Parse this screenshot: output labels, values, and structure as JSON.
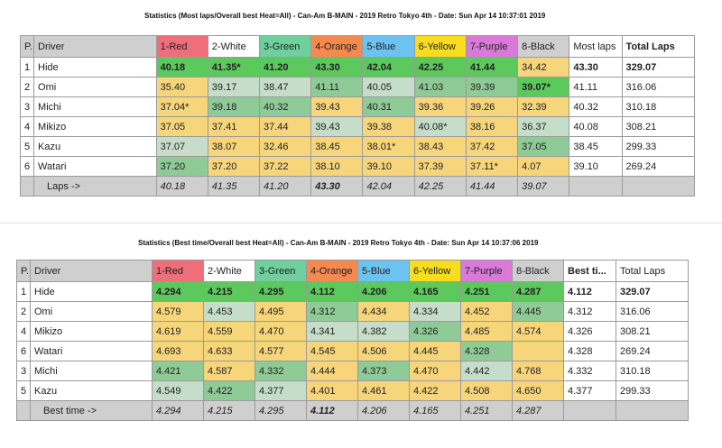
{
  "table1": {
    "title": "Statistics (Most laps/Overall best Heat=All) - Can-Am B-MAIN - 2019 Retro Tokyo 4th - Date: Sun Apr 14 10:37:01 2019",
    "headers": [
      "P...",
      "Driver",
      "1-Red",
      "2-White",
      "3-Green",
      "4-Orange",
      "5-Blue",
      "6-Yellow",
      "7-Purple",
      "8-Black",
      "Most laps",
      "Total Laps"
    ],
    "rows": [
      {
        "pos": "1",
        "driver": "Hide",
        "cells": [
          [
            "40.18",
            "G"
          ],
          [
            "41.35*",
            "G"
          ],
          [
            "41.20",
            "G"
          ],
          [
            "43.30",
            "G"
          ],
          [
            "42.04",
            "G"
          ],
          [
            "42.25",
            "G"
          ],
          [
            "41.44",
            "G"
          ],
          [
            "34.42",
            "y"
          ]
        ],
        "best": "43.30",
        "total": "329.07",
        "bold": true
      },
      {
        "pos": "2",
        "driver": "Omi",
        "cells": [
          [
            "35.40",
            "y"
          ],
          [
            "39.17",
            "lg"
          ],
          [
            "38.47",
            "lg"
          ],
          [
            "41.11",
            "mg"
          ],
          [
            "40.05",
            "lg"
          ],
          [
            "41.03",
            "mg"
          ],
          [
            "39.39",
            "mg"
          ],
          [
            "39.07*",
            "G"
          ]
        ],
        "best": "41.11",
        "total": "316.06"
      },
      {
        "pos": "3",
        "driver": "Michi",
        "cells": [
          [
            "37.04*",
            "y"
          ],
          [
            "39.18",
            "mg"
          ],
          [
            "40.32",
            "mg"
          ],
          [
            "39.43",
            "y"
          ],
          [
            "40.31",
            "mg"
          ],
          [
            "39.36",
            "y"
          ],
          [
            "39.26",
            "y"
          ],
          [
            "32.39",
            "y"
          ]
        ],
        "best": "40.32",
        "total": "310.18"
      },
      {
        "pos": "4",
        "driver": "Mikizo",
        "cells": [
          [
            "37.05",
            "y"
          ],
          [
            "37.41",
            "y"
          ],
          [
            "37.44",
            "y"
          ],
          [
            "39.43",
            "lg"
          ],
          [
            "39.38",
            "y"
          ],
          [
            "40.08*",
            "lg"
          ],
          [
            "38.16",
            "y"
          ],
          [
            "36.37",
            "lg"
          ]
        ],
        "best": "40.08",
        "total": "308.21"
      },
      {
        "pos": "5",
        "driver": "Kazu",
        "cells": [
          [
            "37.07",
            "lg"
          ],
          [
            "38.07",
            "y"
          ],
          [
            "32.46",
            "y"
          ],
          [
            "38.45",
            "y"
          ],
          [
            "38.01*",
            "y"
          ],
          [
            "38.43",
            "y"
          ],
          [
            "37.42",
            "y"
          ],
          [
            "37.05",
            "mg"
          ]
        ],
        "best": "38.45",
        "total": "299.33"
      },
      {
        "pos": "6",
        "driver": "Watari",
        "cells": [
          [
            "37.20",
            "mg"
          ],
          [
            "37.20",
            "y"
          ],
          [
            "37.22",
            "y"
          ],
          [
            "38.10",
            "y"
          ],
          [
            "39.10",
            "y"
          ],
          [
            "37.39",
            "y"
          ],
          [
            "37.11*",
            "y"
          ],
          [
            "4.07",
            "y"
          ]
        ],
        "best": "39.10",
        "total": "269.24"
      }
    ],
    "footer": {
      "label": "Laps ->",
      "values": [
        "40.18",
        "41.35",
        "41.20",
        "43.30",
        "42.04",
        "42.25",
        "41.44",
        "39.07"
      ],
      "bold_index": 3
    }
  },
  "table2": {
    "title": "Statistics (Best time/Overall best Heat=All) - Can-Am B-MAIN - 2019 Retro Tokyo 4th - Date: Sun Apr 14 10:37:06 2019",
    "headers": [
      "P...",
      "Driver",
      "1-Red",
      "2-White",
      "3-Green",
      "4-Orange",
      "5-Blue",
      "6-Yellow",
      "7-Purple",
      "8-Black",
      "Best ti...",
      "Total Laps"
    ],
    "rows": [
      {
        "pos": "1",
        "driver": "Hide",
        "cells": [
          [
            "4.294",
            "G"
          ],
          [
            "4.215",
            "G"
          ],
          [
            "4.295",
            "G"
          ],
          [
            "4.112",
            "G"
          ],
          [
            "4.206",
            "G"
          ],
          [
            "4.165",
            "G"
          ],
          [
            "4.251",
            "G"
          ],
          [
            "4.287",
            "G"
          ]
        ],
        "best": "4.112",
        "total": "329.07",
        "bold": true
      },
      {
        "pos": "2",
        "driver": "Omi",
        "cells": [
          [
            "4.579",
            "y"
          ],
          [
            "4.453",
            "lg"
          ],
          [
            "4.495",
            "y"
          ],
          [
            "4.312",
            "mg"
          ],
          [
            "4.434",
            "y"
          ],
          [
            "4.334",
            "lg"
          ],
          [
            "4.452",
            "y"
          ],
          [
            "4.445",
            "mg"
          ]
        ],
        "best": "4.312",
        "total": "316.06"
      },
      {
        "pos": "4",
        "driver": "Mikizo",
        "cells": [
          [
            "4.619",
            "y"
          ],
          [
            "4.559",
            "y"
          ],
          [
            "4.470",
            "y"
          ],
          [
            "4.341",
            "lg"
          ],
          [
            "4.382",
            "lg"
          ],
          [
            "4.326",
            "mg"
          ],
          [
            "4.485",
            "y"
          ],
          [
            "4.574",
            "y"
          ]
        ],
        "best": "4.326",
        "total": "308.21"
      },
      {
        "pos": "6",
        "driver": "Watari",
        "cells": [
          [
            "4.693",
            "y"
          ],
          [
            "4.633",
            "y"
          ],
          [
            "4.577",
            "y"
          ],
          [
            "4.545",
            "y"
          ],
          [
            "4.506",
            "y"
          ],
          [
            "4.445",
            "y"
          ],
          [
            "4.328",
            "mg"
          ],
          [
            "",
            "y"
          ]
        ],
        "best": "4.328",
        "total": "269.24"
      },
      {
        "pos": "3",
        "driver": "Michi",
        "cells": [
          [
            "4.421",
            "mg"
          ],
          [
            "4.587",
            "y"
          ],
          [
            "4.332",
            "mg"
          ],
          [
            "4.444",
            "y"
          ],
          [
            "4.373",
            "mg"
          ],
          [
            "4.470",
            "y"
          ],
          [
            "4.442",
            "lg"
          ],
          [
            "4.768",
            "y"
          ]
        ],
        "best": "4.332",
        "total": "310.18"
      },
      {
        "pos": "5",
        "driver": "Kazu",
        "cells": [
          [
            "4.549",
            "lg"
          ],
          [
            "4.422",
            "mg"
          ],
          [
            "4.377",
            "lg"
          ],
          [
            "4.401",
            "y"
          ],
          [
            "4.461",
            "y"
          ],
          [
            "4.422",
            "y"
          ],
          [
            "4.508",
            "y"
          ],
          [
            "4.650",
            "y"
          ]
        ],
        "best": "4.377",
        "total": "299.33"
      }
    ],
    "footer": {
      "label": "Best time ->",
      "values": [
        "4.294",
        "4.215",
        "4.295",
        "4.112",
        "4.206",
        "4.165",
        "4.251",
        "4.287"
      ],
      "bold_index": 3
    }
  }
}
